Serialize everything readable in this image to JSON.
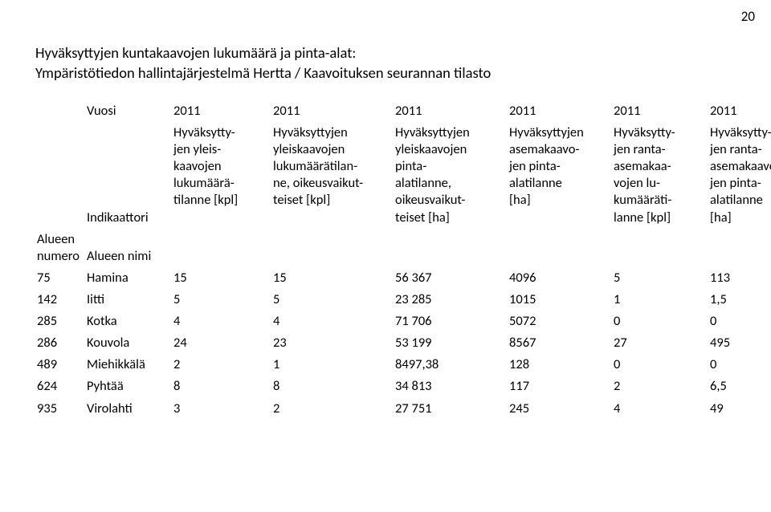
{
  "page_number": "20",
  "title_lines": [
    "Hyväksyttyjen kuntakaavojen lukumäärä ja pinta-alat:",
    "Ympäristötiedon hallintajärjestelmä Hertta / Kaavoituksen seurannan tilasto"
  ],
  "vuosi_label": "Vuosi",
  "indikaattori_label": "Indikaattori",
  "alueen_numero_label": "Alueen\nnumero",
  "alueen_nimi_label": "Alueen nimi",
  "years": [
    "2011",
    "2011",
    "2011",
    "2011",
    "2011",
    "2011"
  ],
  "column_headers": [
    "Hyväksytty-\njen yleis-\nkaavojen\nlukumäärä-\ntilanne [kpl]",
    "Hyväksyttyjen\nyleiskaavojen\nlukumäärätilan-\nne, oikeusvaikut-\nteiset [kpl]",
    "Hyväksyttyjen\nyleiskaavojen\npinta-\nalatilanne,\noikeusvaikut-\nteiset [ha]",
    "Hyväksyttyjen\nasemakaavo-\njen pinta-\nalatilanne\n[ha]",
    "Hyväksytty-\njen ranta-\nasemakaa-\nvojen lu-\nkumääräti-\nlanne [kpl]",
    "Hyväksytty-\njen ranta-\nasemakaavo-\njen pinta-\nalatilanne\n[ha]"
  ],
  "rows": [
    {
      "num": "75",
      "name": "Hamina",
      "v": [
        "15",
        "15",
        "56 367",
        "4096",
        "5",
        "113"
      ]
    },
    {
      "num": "142",
      "name": "Iitti",
      "v": [
        "5",
        "5",
        "23 285",
        "1015",
        "1",
        "1,5"
      ]
    },
    {
      "num": "285",
      "name": "Kotka",
      "v": [
        "4",
        "4",
        "71 706",
        "5072",
        "0",
        "0"
      ]
    },
    {
      "num": "286",
      "name": "Kouvola",
      "v": [
        "24",
        "23",
        "53 199",
        "8567",
        "27",
        "495"
      ]
    },
    {
      "num": "489",
      "name": "Miehikkälä",
      "v": [
        "2",
        "1",
        "8497,38",
        "128",
        "0",
        "0"
      ]
    },
    {
      "num": "624",
      "name": "Pyhtää",
      "v": [
        "8",
        "8",
        "34 813",
        "117",
        "2",
        "6,5"
      ]
    },
    {
      "num": "935",
      "name": "Virolahti",
      "v": [
        "3",
        "2",
        "27 751",
        "245",
        "4",
        "49"
      ]
    }
  ],
  "font": {
    "body_pt": 16.5,
    "title_pt": 18.5
  },
  "colors": {
    "text": "#000000",
    "background": "#ffffff"
  }
}
